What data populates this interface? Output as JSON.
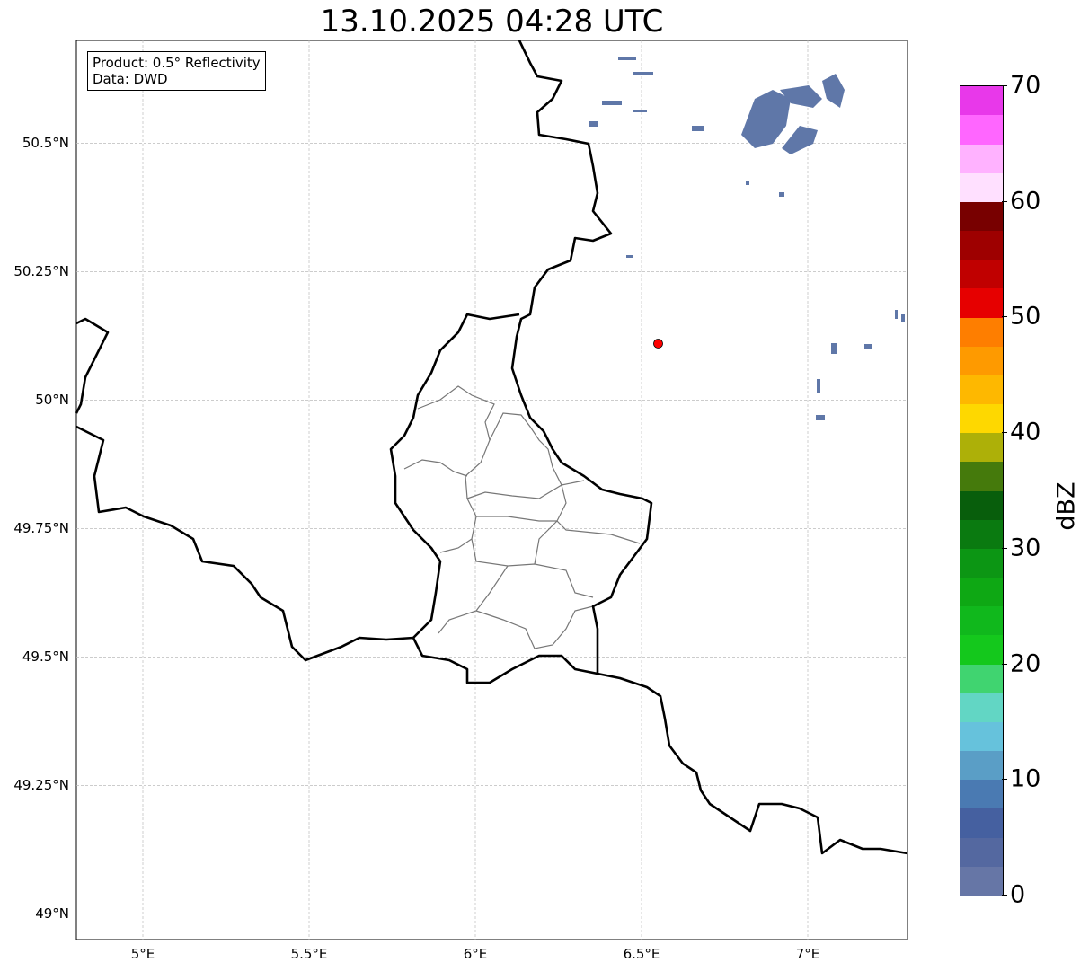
{
  "title": "13.10.2025 04:28 UTC",
  "info": {
    "product": "Product: 0.5° Reflectivity",
    "data": "Data: DWD"
  },
  "map": {
    "lon_range": [
      4.8,
      7.3
    ],
    "lat_range": [
      48.95,
      50.7
    ],
    "lon_ticks": [
      {
        "v": 5,
        "label": "5°E"
      },
      {
        "v": 5.5,
        "label": "5.5°E"
      },
      {
        "v": 6,
        "label": "6°E"
      },
      {
        "v": 6.5,
        "label": "6.5°E"
      },
      {
        "v": 7,
        "label": "7°E"
      }
    ],
    "lat_ticks": [
      {
        "v": 50.5,
        "label": "50.5°N"
      },
      {
        "v": 50.25,
        "label": "50.25°N"
      },
      {
        "v": 50,
        "label": "50°N"
      },
      {
        "v": 49.75,
        "label": "49.75°N"
      },
      {
        "v": 49.5,
        "label": "49.5°N"
      },
      {
        "v": 49.25,
        "label": "49.25°N"
      },
      {
        "v": 49,
        "label": "49°N"
      }
    ],
    "radar_site": {
      "lon": 6.55,
      "lat": 50.11,
      "color": "#ff0000"
    }
  },
  "colorbar": {
    "unit": "dBZ",
    "min": 0,
    "max": 70,
    "step": 2.5,
    "ticks": [
      "0",
      "10",
      "20",
      "30",
      "40",
      "50",
      "60",
      "70"
    ],
    "colors": [
      "#6676a6",
      "#5468a0",
      "#4560a0",
      "#4a7ab2",
      "#5a9ec6",
      "#66c2dc",
      "#62d6c4",
      "#40d470",
      "#14c81c",
      "#10b81c",
      "#0ea814",
      "#0c9614",
      "#0a7a10",
      "#085e0c",
      "#457a0c",
      "#adb008",
      "#fed800",
      "#feb800",
      "#fe9a00",
      "#fe7e00",
      "#e60000",
      "#c00000",
      "#9e0000",
      "#780000",
      "#ffe0ff",
      "#ffb2ff",
      "#ff66ff",
      "#e838ea"
    ]
  }
}
